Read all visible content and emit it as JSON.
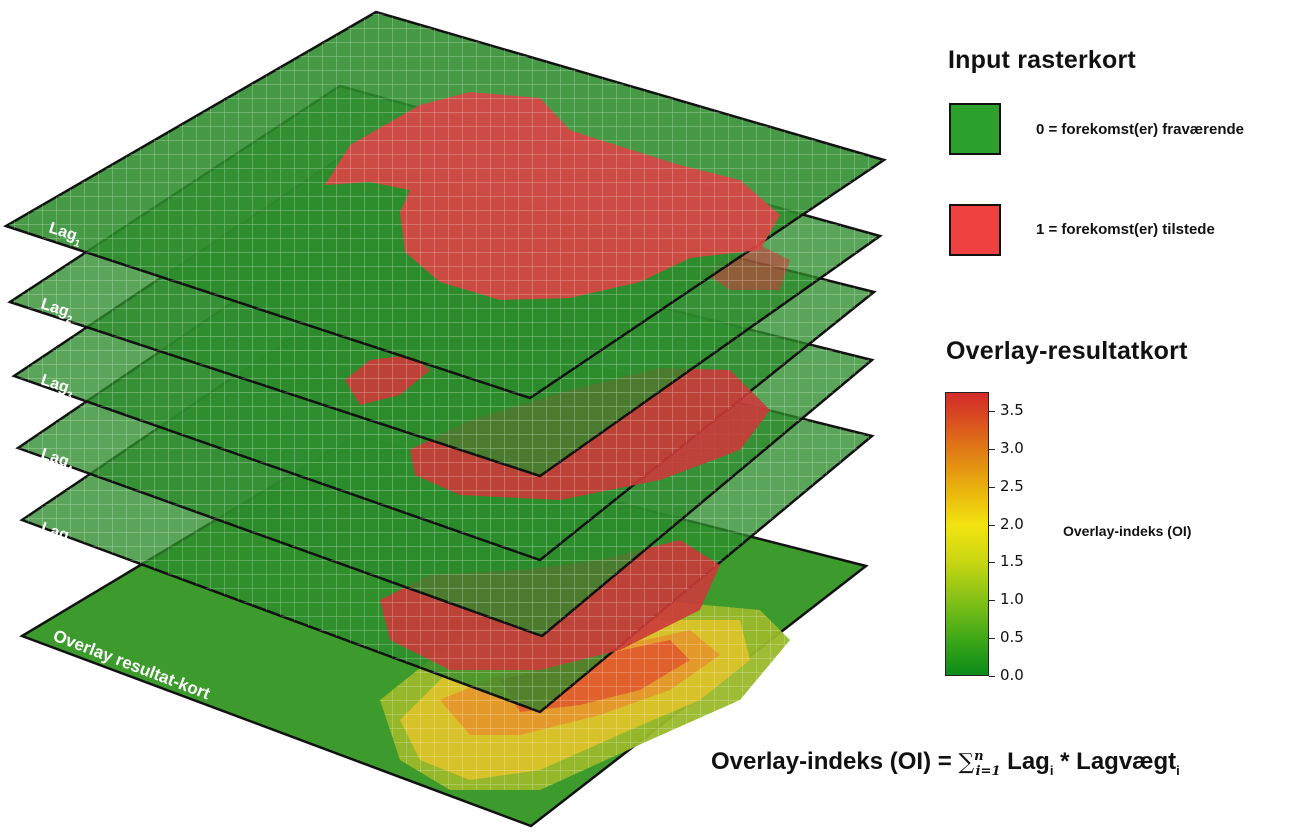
{
  "diagram": {
    "layers": [
      {
        "id": "lag1",
        "label_main": "Lag",
        "label_sub": "1"
      },
      {
        "id": "lag2",
        "label_main": "Lag",
        "label_sub": "2"
      },
      {
        "id": "lag3",
        "label_main": "Lag",
        "label_sub": "3"
      },
      {
        "id": "lag4",
        "label_main": "Lag",
        "label_sub": "4"
      },
      {
        "id": "lagn",
        "label_main": "Lag",
        "label_sub": "n"
      }
    ],
    "result_label": "Overlay resultat-kort"
  },
  "legend": {
    "title": "Input rasterkort",
    "items": [
      {
        "label": "0 = forekomst(er) fraværende",
        "color": "#2ca02c"
      },
      {
        "label": "1 = forekomst(er) tilstede",
        "color": "#f04141"
      }
    ]
  },
  "colorbar": {
    "title": "Overlay-resultatkort",
    "label": "Overlay-indeks (OI)",
    "range": [
      0.0,
      3.75
    ],
    "ticks": [
      "0.0",
      "0.5",
      "1.0",
      "1.5",
      "2.0",
      "2.5",
      "3.0",
      "3.5"
    ],
    "colors": [
      "#0a8a1a",
      "#86c218",
      "#f2e410",
      "#e07a16",
      "#d22b2b"
    ]
  },
  "formula": {
    "lhs": "Overlay-indeks (OI) = ",
    "sum_symbol": "∑",
    "sum_lower": "i=1",
    "sum_upper": "n",
    "term1": " Lag",
    "term1_sub": "i",
    "op": " * ",
    "term2": "Lagvægt",
    "term2_sub": "i"
  }
}
